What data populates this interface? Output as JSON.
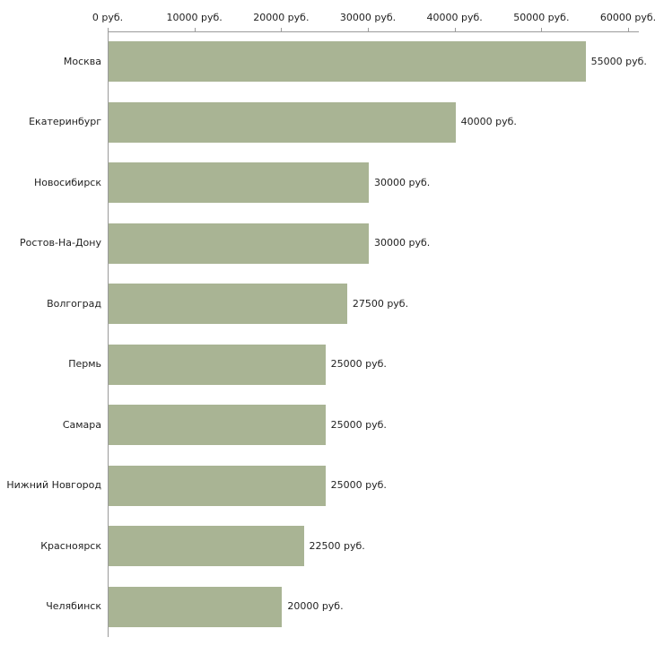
{
  "chart_data": {
    "type": "bar",
    "orientation": "horizontal",
    "title": "",
    "xlabel": "",
    "ylabel": "",
    "grid": false,
    "legend": "none",
    "categories": [
      "Москва",
      "Екатеринбург",
      "Новосибирск",
      "Ростов-На-Дону",
      "Волгоград",
      "Пермь",
      "Самара",
      "Нижний Новгород",
      "Красноярск",
      "Челябинск"
    ],
    "values": [
      55000,
      40000,
      30000,
      30000,
      27500,
      25000,
      25000,
      25000,
      22500,
      20000
    ],
    "bar_labels": [
      "55000 руб.",
      "40000 руб.",
      "30000 руб.",
      "30000 руб.",
      "27500 руб.",
      "25000 руб.",
      "25000 руб.",
      "25000 руб.",
      "22500 руб.",
      "20000 руб."
    ],
    "x_axis": {
      "position": "top",
      "min": 0,
      "max": 60000,
      "tick_values": [
        0,
        10000,
        20000,
        30000,
        40000,
        50000,
        60000
      ],
      "tick_labels": [
        "0 руб.",
        "10000 руб.",
        "20000 руб.",
        "30000 руб.",
        "40000 руб.",
        "50000 руб.",
        "60000 руб."
      ]
    },
    "bar_color": "#a9b494",
    "axis_color": "#9b9b9b",
    "text_color": "#1f1f1f",
    "background_color": "#ffffff"
  }
}
